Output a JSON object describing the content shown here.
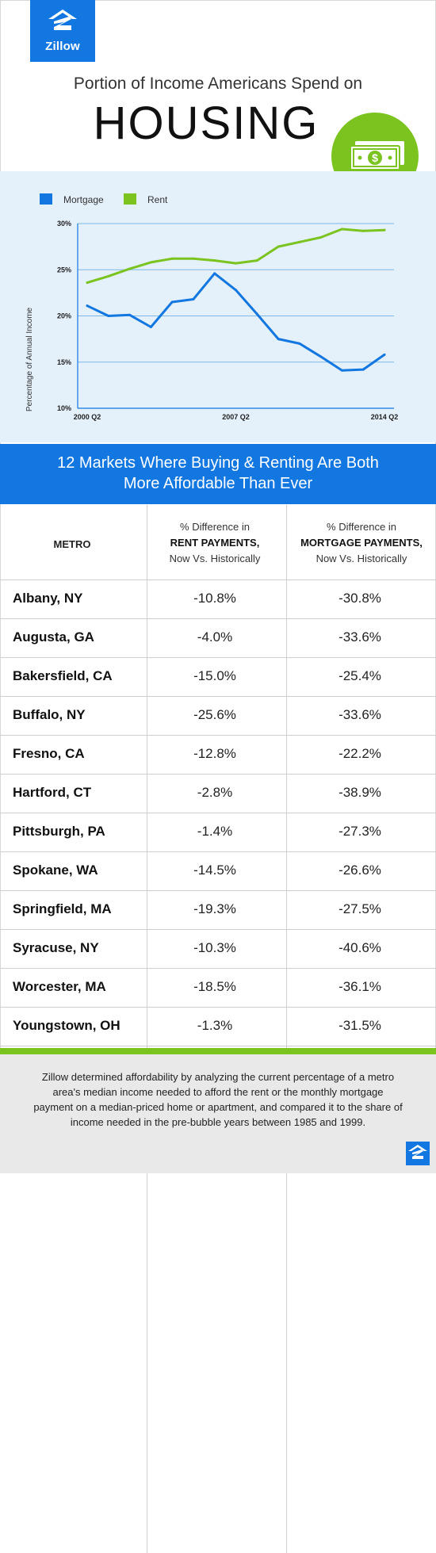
{
  "header": {
    "logo_text": "Zillow",
    "subtitle": "Portion of Income Americans Spend on",
    "title": "HOUSING",
    "money_icon": "money-bill-icon",
    "brand_color": "#1277e1",
    "accent_green": "#7bc41f"
  },
  "chart_data": {
    "type": "line",
    "ylabel": "Percentage of Annual Income",
    "ylim": [
      10,
      30
    ],
    "yticks": [
      "30%",
      "25%",
      "20%",
      "15%",
      "10%"
    ],
    "xticks": [
      "2000 Q2",
      "2007 Q2",
      "2014 Q2"
    ],
    "legend_position": "top-left",
    "grid": true,
    "x": [
      "2000 Q2",
      "2001 Q2",
      "2002 Q2",
      "2003 Q2",
      "2004 Q2",
      "2005 Q2",
      "2006 Q2",
      "2007 Q2",
      "2008 Q2",
      "2009 Q2",
      "2010 Q2",
      "2011 Q2",
      "2012 Q2",
      "2013 Q2",
      "2014 Q2"
    ],
    "series": [
      {
        "name": "Mortgage",
        "color": "#1277e1",
        "values": [
          21.1,
          20.0,
          20.1,
          18.8,
          21.5,
          21.8,
          24.6,
          22.8,
          20.2,
          17.5,
          17.0,
          15.6,
          14.1,
          14.2,
          15.8
        ]
      },
      {
        "name": "Rent",
        "color": "#7bc41f",
        "values": [
          23.6,
          24.3,
          25.1,
          25.8,
          26.2,
          26.2,
          26.0,
          25.7,
          26.0,
          27.5,
          28.0,
          28.5,
          29.4,
          29.2,
          29.3
        ]
      }
    ]
  },
  "banner": {
    "line1": "12 Markets Where Buying & Renting Are Both",
    "line2": "More Affordable Than Ever"
  },
  "table": {
    "metro_header": "METRO",
    "rent_header": {
      "line1": "% Difference in",
      "line2": "RENT PAYMENTS,",
      "line3": "Now Vs. Historically"
    },
    "mortgage_header": {
      "line1": "% Difference in",
      "line2": "MORTGAGE PAYMENTS,",
      "line3": "Now Vs. Historically"
    },
    "rows": [
      {
        "metro": "Albany, NY",
        "rent": "-10.8%",
        "mortgage": "-30.8%"
      },
      {
        "metro": "Augusta, GA",
        "rent": "-4.0%",
        "mortgage": "-33.6%"
      },
      {
        "metro": "Bakersfield, CA",
        "rent": "-15.0%",
        "mortgage": "-25.4%"
      },
      {
        "metro": "Buffalo, NY",
        "rent": "-25.6%",
        "mortgage": "-33.6%"
      },
      {
        "metro": "Fresno, CA",
        "rent": "-12.8%",
        "mortgage": "-22.2%"
      },
      {
        "metro": "Hartford, CT",
        "rent": "-2.8%",
        "mortgage": "-38.9%"
      },
      {
        "metro": "Pittsburgh, PA",
        "rent": "-1.4%",
        "mortgage": "-27.3%"
      },
      {
        "metro": "Spokane, WA",
        "rent": "-14.5%",
        "mortgage": "-26.6%"
      },
      {
        "metro": "Springfield, MA",
        "rent": "-19.3%",
        "mortgage": "-27.5%"
      },
      {
        "metro": "Syracuse, NY",
        "rent": "-10.3%",
        "mortgage": "-40.6%"
      },
      {
        "metro": "Worcester, MA",
        "rent": "-18.5%",
        "mortgage": "-36.1%"
      },
      {
        "metro": "Youngstown, OH",
        "rent": "-1.3%",
        "mortgage": "-31.5%"
      }
    ]
  },
  "footer": {
    "text": "Zillow determined affordability by analyzing the current percentage of a metro area's median income needed to afford the rent or the monthly mortgage payment on a median-priced home or apartment, and compared it to the share of income needed in the pre-bubble years between 1985 and 1999.",
    "logo_icon": "zillow-logo-icon"
  }
}
